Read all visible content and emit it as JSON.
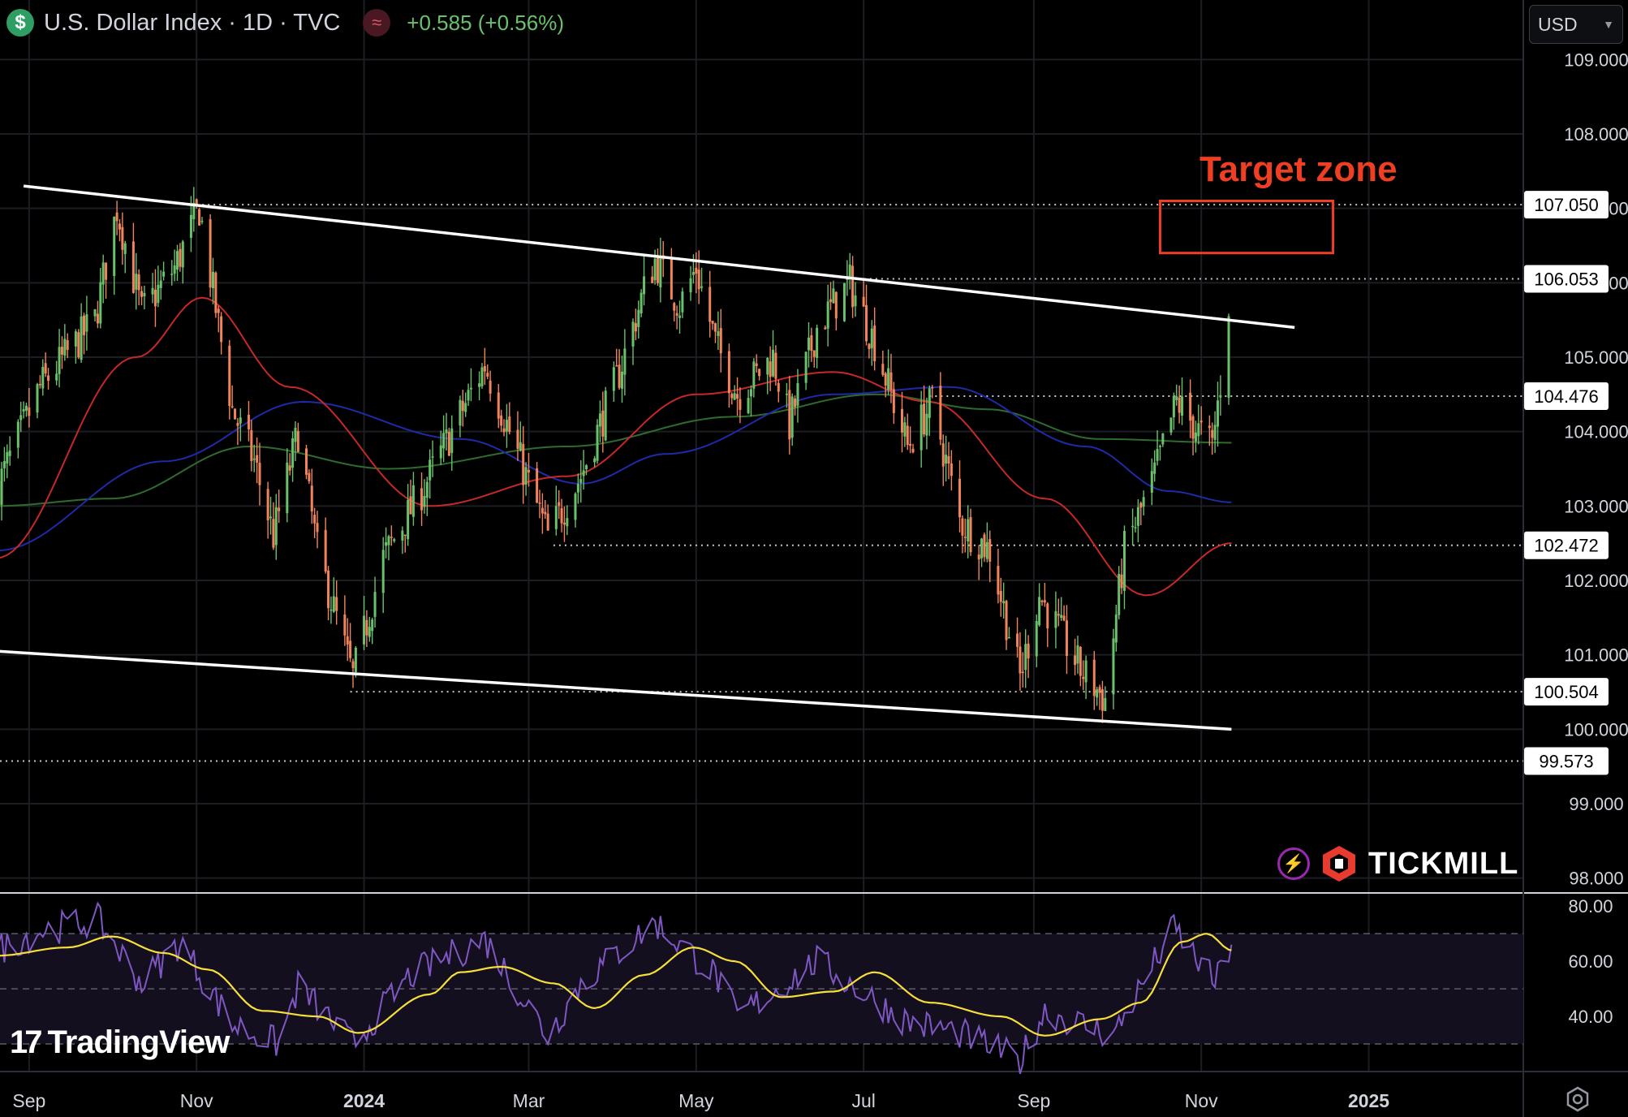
{
  "header": {
    "currency_symbol": "$",
    "title": "U.S. Dollar Index · 1D · TVC",
    "indicator_glyph": "≈",
    "change": "+0.585 (+0.56%)"
  },
  "currency_selector": {
    "value": "USD",
    "icon": "chevron-down-icon"
  },
  "annotation": {
    "target_label": "Target zone"
  },
  "brand": {
    "tickmill": "TICKMILL",
    "tradingview": "TradingView",
    "tradingview_mark": "17"
  },
  "icons": [
    "dollar-coin-icon",
    "wave-indicator-icon",
    "chevron-down-icon",
    "bolt-icon",
    "tickmill-logo-icon",
    "tradingview-logo-icon",
    "settings-icon"
  ],
  "colors": {
    "up": "#6ac16b",
    "down": "#f2845c",
    "ma_red": "#c62828",
    "ma_blue": "#1e2aa8",
    "ma_green": "#2e6b2e",
    "rsi": "#7e57c2",
    "rsi_ma": "#f7df3a",
    "target": "#ef3e22",
    "change": "#6ac16b"
  },
  "chart_data": [
    {
      "type": "candlestick",
      "ylim": [
        97.8,
        109.8
      ],
      "y_ticks": [
        "109.000",
        "108.000",
        "107.000",
        "106.000",
        "105.000",
        "104.000",
        "103.000",
        "102.000",
        "101.000",
        "100.000",
        "99.000",
        "98.000"
      ],
      "x_ticks": [
        "Sep",
        "Nov",
        "2024",
        "Mar",
        "May",
        "Jul",
        "Sep",
        "Nov",
        "2025"
      ],
      "price_labels": [
        "107.050",
        "106.053",
        "104.476",
        "102.472",
        "100.504",
        "99.573"
      ],
      "anchors": [
        {
          "d": "2023-08-20",
          "v": 103.2
        },
        {
          "d": "2023-09-05",
          "v": 104.6
        },
        {
          "d": "2023-09-25",
          "v": 105.5
        },
        {
          "d": "2023-10-03",
          "v": 107.0
        },
        {
          "d": "2023-10-12",
          "v": 105.6
        },
        {
          "d": "2023-10-24",
          "v": 106.2
        },
        {
          "d": "2023-11-02",
          "v": 107.0
        },
        {
          "d": "2023-11-14",
          "v": 104.3
        },
        {
          "d": "2023-11-22",
          "v": 103.6
        },
        {
          "d": "2023-11-29",
          "v": 102.6
        },
        {
          "d": "2023-12-08",
          "v": 104.0
        },
        {
          "d": "2023-12-15",
          "v": 102.4
        },
        {
          "d": "2023-12-28",
          "v": 100.7
        },
        {
          "d": "2024-01-08",
          "v": 102.3
        },
        {
          "d": "2024-01-22",
          "v": 103.2
        },
        {
          "d": "2024-02-02",
          "v": 104.0
        },
        {
          "d": "2024-02-14",
          "v": 104.9
        },
        {
          "d": "2024-02-23",
          "v": 104.0
        },
        {
          "d": "2024-03-08",
          "v": 102.6
        },
        {
          "d": "2024-03-20",
          "v": 103.4
        },
        {
          "d": "2024-04-03",
          "v": 104.8
        },
        {
          "d": "2024-04-12",
          "v": 105.9
        },
        {
          "d": "2024-04-16",
          "v": 106.3
        },
        {
          "d": "2024-04-25",
          "v": 105.7
        },
        {
          "d": "2024-05-01",
          "v": 106.2
        },
        {
          "d": "2024-05-08",
          "v": 105.2
        },
        {
          "d": "2024-05-16",
          "v": 104.5
        },
        {
          "d": "2024-05-29",
          "v": 105.0
        },
        {
          "d": "2024-06-04",
          "v": 104.1
        },
        {
          "d": "2024-06-14",
          "v": 105.4
        },
        {
          "d": "2024-06-26",
          "v": 106.0
        },
        {
          "d": "2024-07-05",
          "v": 105.2
        },
        {
          "d": "2024-07-17",
          "v": 103.8
        },
        {
          "d": "2024-07-26",
          "v": 104.4
        },
        {
          "d": "2024-08-05",
          "v": 102.8
        },
        {
          "d": "2024-08-16",
          "v": 102.4
        },
        {
          "d": "2024-08-27",
          "v": 100.7
        },
        {
          "d": "2024-09-03",
          "v": 101.8
        },
        {
          "d": "2024-09-12",
          "v": 101.2
        },
        {
          "d": "2024-09-18",
          "v": 100.8
        },
        {
          "d": "2024-09-27",
          "v": 100.4
        },
        {
          "d": "2024-10-04",
          "v": 102.4
        },
        {
          "d": "2024-10-14",
          "v": 103.3
        },
        {
          "d": "2024-10-23",
          "v": 104.4
        },
        {
          "d": "2024-10-31",
          "v": 104.0
        },
        {
          "d": "2024-11-05",
          "v": 103.8
        },
        {
          "d": "2024-11-11",
          "v": 105.5
        }
      ],
      "ma_red": [
        {
          "d": "2023-08-20",
          "v": 102.3
        },
        {
          "d": "2023-10-10",
          "v": 105.0
        },
        {
          "d": "2023-11-03",
          "v": 105.8
        },
        {
          "d": "2023-12-05",
          "v": 104.6
        },
        {
          "d": "2024-01-25",
          "v": 103.0
        },
        {
          "d": "2024-03-15",
          "v": 103.4
        },
        {
          "d": "2024-05-01",
          "v": 104.5
        },
        {
          "d": "2024-06-20",
          "v": 104.8
        },
        {
          "d": "2024-07-25",
          "v": 104.4
        },
        {
          "d": "2024-09-05",
          "v": 103.1
        },
        {
          "d": "2024-10-12",
          "v": 101.8
        },
        {
          "d": "2024-11-12",
          "v": 102.5
        }
      ],
      "ma_blue": [
        {
          "d": "2023-08-20",
          "v": 102.4
        },
        {
          "d": "2023-10-20",
          "v": 103.6
        },
        {
          "d": "2023-12-10",
          "v": 104.4
        },
        {
          "d": "2024-02-05",
          "v": 103.9
        },
        {
          "d": "2024-03-20",
          "v": 103.3
        },
        {
          "d": "2024-04-20",
          "v": 103.7
        },
        {
          "d": "2024-06-20",
          "v": 104.5
        },
        {
          "d": "2024-08-01",
          "v": 104.6
        },
        {
          "d": "2024-09-20",
          "v": 103.8
        },
        {
          "d": "2024-10-20",
          "v": 103.2
        },
        {
          "d": "2024-11-12",
          "v": 103.05
        }
      ],
      "ma_green": [
        {
          "d": "2023-08-20",
          "v": 103.0
        },
        {
          "d": "2023-10-01",
          "v": 103.1
        },
        {
          "d": "2023-11-20",
          "v": 103.8
        },
        {
          "d": "2024-01-10",
          "v": 103.5
        },
        {
          "d": "2024-03-15",
          "v": 103.8
        },
        {
          "d": "2024-05-15",
          "v": 104.2
        },
        {
          "d": "2024-07-05",
          "v": 104.5
        },
        {
          "d": "2024-08-15",
          "v": 104.3
        },
        {
          "d": "2024-09-25",
          "v": 103.9
        },
        {
          "d": "2024-11-12",
          "v": 103.85
        }
      ],
      "trend_upper": [
        {
          "d": "2023-08-30",
          "v": 107.3
        },
        {
          "d": "2024-12-05",
          "v": 105.4
        }
      ],
      "trend_lower": [
        {
          "d": "2023-08-20",
          "v": 101.05
        },
        {
          "d": "2024-11-12",
          "v": 100.0
        }
      ],
      "level_dates": {
        "107.050": [
          "2023-11-01",
          "2025-01-26"
        ],
        "106.053": [
          "2024-06-25",
          "2025-01-26"
        ],
        "104.476": [
          "2024-07-25",
          "2025-01-26"
        ],
        "102.472": [
          "2024-03-10",
          "2025-01-26"
        ],
        "100.504": [
          "2023-12-27",
          "2025-01-26"
        ],
        "99.573": [
          "2023-08-20",
          "2025-01-26"
        ]
      },
      "target_zone": {
        "label": "Target zone",
        "from": "2024-10-17",
        "to": "2024-12-19",
        "low": 106.4,
        "high": 107.1
      }
    },
    {
      "type": "line",
      "name": "RSI",
      "ylim": [
        20,
        83
      ],
      "y_ticks": [
        "80.00",
        "60.00",
        "40.00"
      ],
      "band": [
        30,
        70
      ],
      "rsi": [
        {
          "d": "2023-08-20",
          "v": 64
        },
        {
          "d": "2023-09-05",
          "v": 71
        },
        {
          "d": "2023-09-26",
          "v": 75
        },
        {
          "d": "2023-10-12",
          "v": 52
        },
        {
          "d": "2023-10-26",
          "v": 67
        },
        {
          "d": "2023-11-14",
          "v": 37
        },
        {
          "d": "2023-12-01",
          "v": 30
        },
        {
          "d": "2023-12-08",
          "v": 51
        },
        {
          "d": "2023-12-28",
          "v": 30
        },
        {
          "d": "2024-01-18",
          "v": 55
        },
        {
          "d": "2024-02-14",
          "v": 68
        },
        {
          "d": "2024-03-08",
          "v": 33
        },
        {
          "d": "2024-03-20",
          "v": 52
        },
        {
          "d": "2024-04-16",
          "v": 74
        },
        {
          "d": "2024-05-08",
          "v": 55
        },
        {
          "d": "2024-05-16",
          "v": 40
        },
        {
          "d": "2024-06-14",
          "v": 60
        },
        {
          "d": "2024-07-17",
          "v": 38
        },
        {
          "d": "2024-08-05",
          "v": 34
        },
        {
          "d": "2024-08-27",
          "v": 24
        },
        {
          "d": "2024-09-05",
          "v": 42
        },
        {
          "d": "2024-09-30",
          "v": 33
        },
        {
          "d": "2024-10-22",
          "v": 72
        },
        {
          "d": "2024-10-31",
          "v": 60
        },
        {
          "d": "2024-11-06",
          "v": 52
        },
        {
          "d": "2024-11-12",
          "v": 66
        }
      ],
      "rsi_ma": [
        {
          "d": "2023-08-20",
          "v": 62
        },
        {
          "d": "2023-09-15",
          "v": 65
        },
        {
          "d": "2023-10-01",
          "v": 69
        },
        {
          "d": "2023-10-20",
          "v": 63
        },
        {
          "d": "2023-11-05",
          "v": 57
        },
        {
          "d": "2023-11-25",
          "v": 42
        },
        {
          "d": "2023-12-15",
          "v": 40
        },
        {
          "d": "2023-12-30",
          "v": 34
        },
        {
          "d": "2024-01-25",
          "v": 48
        },
        {
          "d": "2024-02-05",
          "v": 56
        },
        {
          "d": "2024-02-20",
          "v": 58
        },
        {
          "d": "2024-03-10",
          "v": 52
        },
        {
          "d": "2024-03-25",
          "v": 43
        },
        {
          "d": "2024-04-12",
          "v": 55
        },
        {
          "d": "2024-04-30",
          "v": 65
        },
        {
          "d": "2024-05-15",
          "v": 60
        },
        {
          "d": "2024-06-01",
          "v": 47
        },
        {
          "d": "2024-06-20",
          "v": 49
        },
        {
          "d": "2024-07-05",
          "v": 56
        },
        {
          "d": "2024-07-25",
          "v": 45
        },
        {
          "d": "2024-08-20",
          "v": 40
        },
        {
          "d": "2024-09-05",
          "v": 33
        },
        {
          "d": "2024-09-25",
          "v": 39
        },
        {
          "d": "2024-10-10",
          "v": 45
        },
        {
          "d": "2024-10-25",
          "v": 67
        },
        {
          "d": "2024-11-03",
          "v": 70
        },
        {
          "d": "2024-11-12",
          "v": 64
        }
      ]
    }
  ]
}
